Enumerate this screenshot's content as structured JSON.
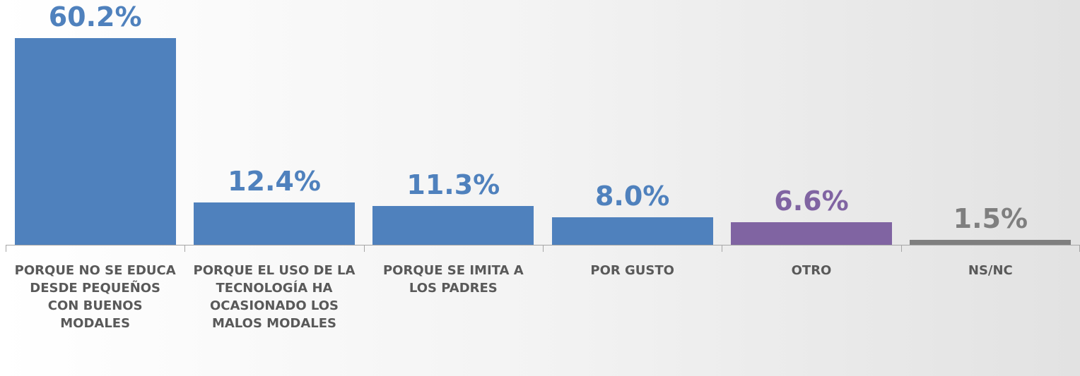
{
  "chart_data": {
    "type": "bar",
    "categories": [
      "PORQUE NO SE EDUCA DESDE PEQUEÑOS CON BUENOS MODALES",
      "PORQUE EL USO DE LA TECNOLOGÍA HA OCASIONADO LOS MALOS MODALES",
      "PORQUE SE IMITA A LOS PADRES",
      "POR GUSTO",
      "OTRO",
      "NS/NC"
    ],
    "values": [
      60.2,
      12.4,
      11.3,
      8.0,
      6.6,
      1.5
    ],
    "value_labels": [
      "60.2%",
      "12.4%",
      "11.3%",
      "8.0%",
      "6.6%",
      "1.5%"
    ],
    "colors": [
      "#4f81bd",
      "#4f81bd",
      "#4f81bd",
      "#4f81bd",
      "#8064a2",
      "#7f7f7f"
    ]
  }
}
